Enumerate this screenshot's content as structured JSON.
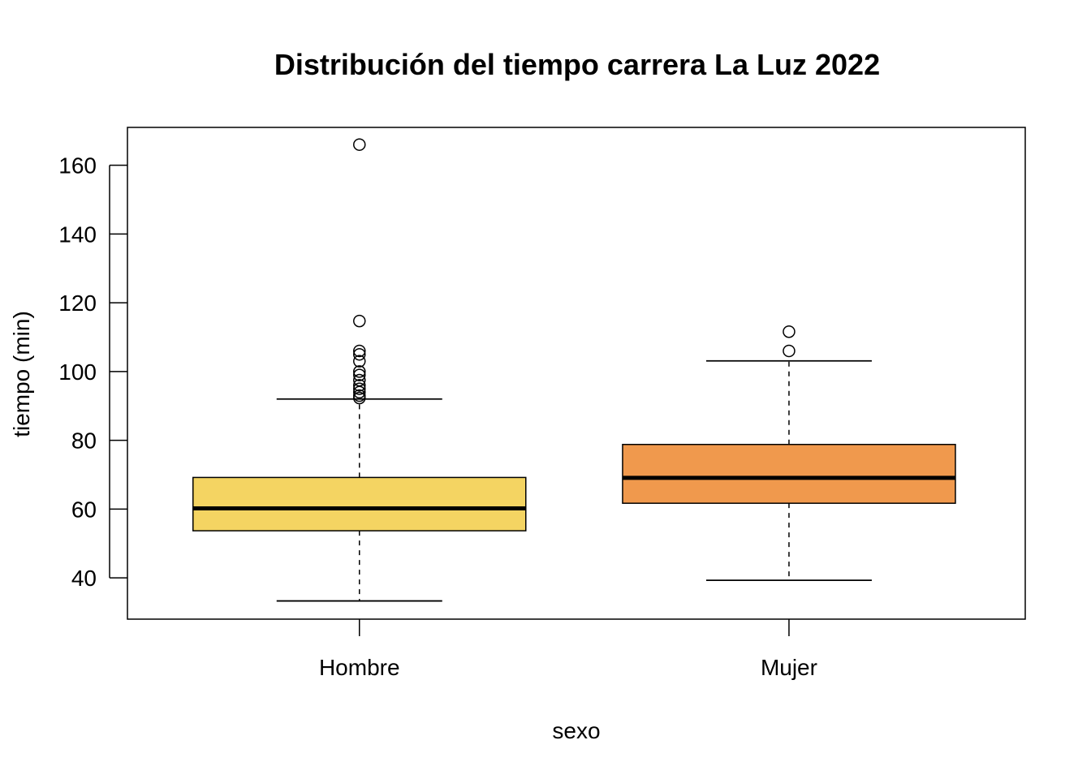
{
  "chart_data": {
    "type": "boxplot",
    "title": "Distribución del tiempo carrera La Luz 2022",
    "xlabel": "sexo",
    "ylabel": "tiempo (min)",
    "ylim": [
      28,
      171
    ],
    "yticks": [
      40,
      60,
      80,
      100,
      120,
      140,
      160
    ],
    "categories": [
      "Hombre",
      "Mujer"
    ],
    "series": [
      {
        "category": "Hombre",
        "color": "#F4D462",
        "whisker_low": 33.3,
        "q1": 53.7,
        "median": 60.2,
        "q3": 69.2,
        "whisker_high": 92.0,
        "outliers": [
          92.3,
          93.0,
          94.0,
          95.0,
          96.0,
          97.5,
          99.0,
          100.0,
          103.0,
          105.0,
          106.0,
          114.7,
          166.0
        ]
      },
      {
        "category": "Mujer",
        "color": "#F0994D",
        "whisker_low": 39.3,
        "q1": 61.7,
        "median": 69.1,
        "q3": 78.8,
        "whisker_high": 103.1,
        "outliers": [
          106.0,
          111.6
        ]
      }
    ],
    "grid": false,
    "legend": "none"
  }
}
